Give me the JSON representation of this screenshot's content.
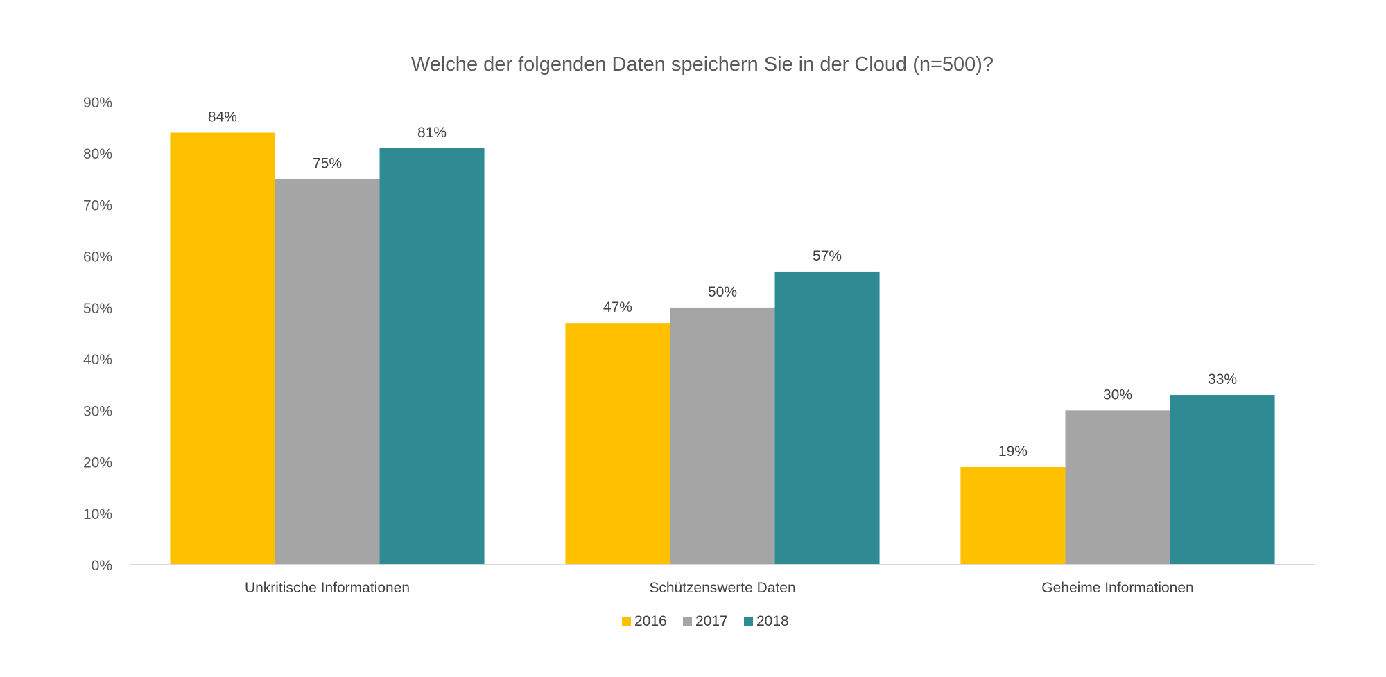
{
  "chart_data": {
    "type": "bar",
    "title": "Welche der folgenden Daten speichern Sie in der Cloud (n=500)?",
    "categories": [
      "Unkritische Informationen",
      "Schützenswerte Daten",
      "Geheime Informationen"
    ],
    "series": [
      {
        "name": "2016",
        "values": [
          84,
          47,
          19
        ],
        "color": "#FFC000"
      },
      {
        "name": "2017",
        "values": [
          75,
          50,
          30
        ],
        "color": "#A5A5A5"
      },
      {
        "name": "2018",
        "values": [
          81,
          57,
          33
        ],
        "color": "#2E8B93"
      }
    ],
    "data_labels": [
      [
        "84%",
        "47%",
        "19%"
      ],
      [
        "75%",
        "50%",
        "30%"
      ],
      [
        "81%",
        "57%",
        "33%"
      ]
    ],
    "ylim": [
      0,
      90
    ],
    "yticks": [
      "0%",
      "10%",
      "20%",
      "30%",
      "40%",
      "50%",
      "60%",
      "70%",
      "80%",
      "90%"
    ],
    "legend_position": "bottom",
    "grid": false
  }
}
